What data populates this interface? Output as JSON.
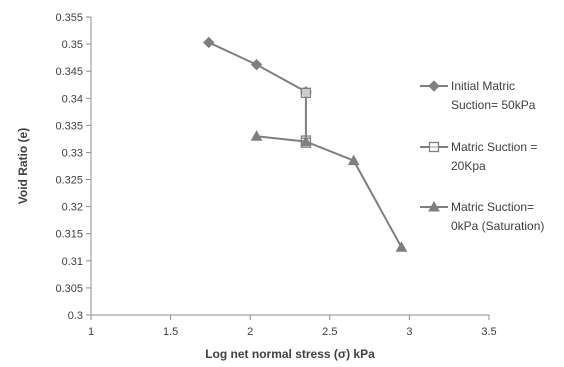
{
  "chart_data": {
    "type": "line",
    "xlabel": "Log net normal stress (σ) kPa",
    "ylabel": "Void Ratio (e)",
    "xlim": [
      1,
      3.5
    ],
    "ylim": [
      0.3,
      0.355
    ],
    "xticks": [
      "1",
      "1.5",
      "2",
      "2.5",
      "3",
      "3.5"
    ],
    "yticks": [
      "0.3",
      "0.305",
      "0.31",
      "0.315",
      "0.32",
      "0.325",
      "0.33",
      "0.335",
      "0.34",
      "0.345",
      "0.35",
      "0.355"
    ],
    "legend_position": "right",
    "series": [
      {
        "name_lines": [
          "Initial Matric",
          "Suction= 50kPa"
        ],
        "marker": "diamond",
        "color": "#7f7f7f",
        "points": [
          [
            1.74,
            0.3503
          ],
          [
            2.04,
            0.3462
          ],
          [
            2.35,
            0.3412
          ],
          [
            2.35,
            0.341
          ]
        ]
      },
      {
        "name_lines": [
          "Matric Suction =",
          "20Kpa"
        ],
        "marker": "square",
        "color": "#7f7f7f",
        "points": [
          [
            2.35,
            0.341
          ],
          [
            2.35,
            0.3322
          ],
          [
            2.35,
            0.3318
          ]
        ]
      },
      {
        "name_lines": [
          "Matric Suction=",
          "0kPa (Saturation)"
        ],
        "marker": "triangle",
        "color": "#7f7f7f",
        "points": [
          [
            2.04,
            0.333
          ],
          [
            2.35,
            0.332
          ],
          [
            2.65,
            0.3285
          ],
          [
            2.95,
            0.3125
          ]
        ]
      }
    ]
  }
}
